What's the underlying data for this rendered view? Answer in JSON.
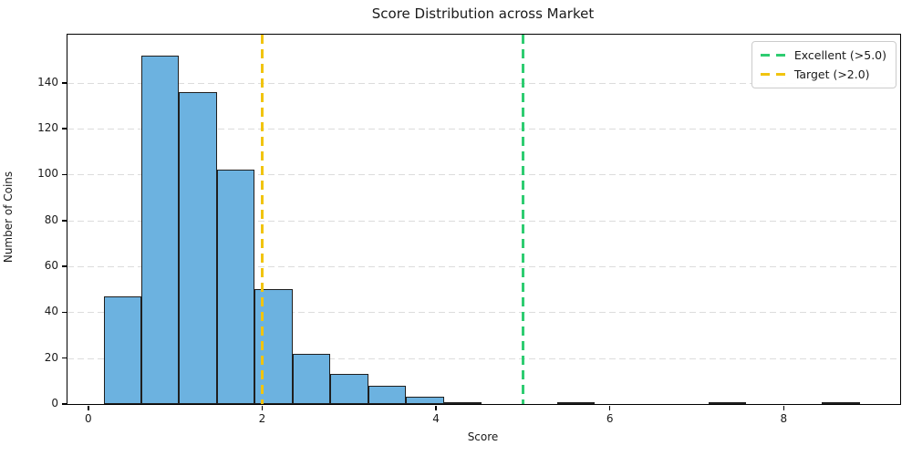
{
  "figure": {
    "title": "Score Distribution across Market",
    "xlabel": "Score",
    "ylabel": "Number of Coins"
  },
  "chart_data": {
    "type": "bar",
    "subtype": "histogram",
    "title": "Score Distribution across Market",
    "xlabel": "Score",
    "ylabel": "Number of Coins",
    "bin_edges": [
      0.175,
      0.61,
      1.045,
      1.48,
      1.915,
      2.35,
      2.785,
      3.22,
      3.655,
      4.09,
      4.525,
      4.96,
      5.395,
      5.83,
      6.265,
      6.7,
      7.135,
      7.57,
      8.005,
      8.44,
      8.875
    ],
    "counts": [
      47,
      152,
      136,
      102,
      50,
      22,
      13,
      8,
      3,
      1,
      0,
      0,
      1,
      0,
      0,
      0,
      1,
      0,
      0,
      1
    ],
    "xticks": [
      0,
      2,
      4,
      6,
      8
    ],
    "yticks": [
      0,
      20,
      40,
      60,
      80,
      100,
      120,
      140
    ],
    "xlim": [
      -0.24,
      9.34
    ],
    "ylim": [
      0,
      161
    ],
    "grid": "y-only-dashed",
    "grid_color": "#dcdcdc",
    "bar_color": "#6cb2e0",
    "bar_edge_color": "#1f1f1f",
    "vlines": [
      {
        "name": "excellent-line",
        "x": 5.0,
        "color": "#2ecc71",
        "label": "Excellent (>5.0)"
      },
      {
        "name": "target-line",
        "x": 2.0,
        "color": "#f1c40f",
        "label": "Target (>2.0)"
      }
    ],
    "legend_position": "upper right"
  }
}
